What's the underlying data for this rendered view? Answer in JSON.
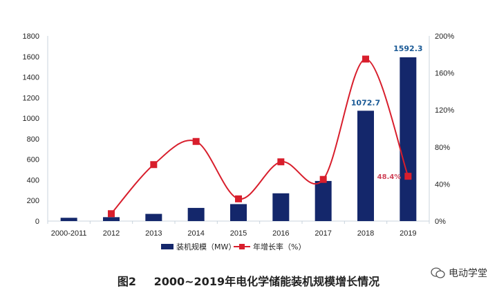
{
  "chart_data": {
    "type": "bar+line",
    "categories": [
      "2000-2011",
      "2012",
      "2013",
      "2014",
      "2015",
      "2016",
      "2017",
      "2018",
      "2019"
    ],
    "series": [
      {
        "name": "装机规模（MW）",
        "type": "bar",
        "axis": "left",
        "color": "#14276b",
        "values": [
          32,
          38,
          70,
          128,
          165,
          270,
          390,
          1072.7,
          1592.3
        ]
      },
      {
        "name": "年增长率（%）",
        "type": "line",
        "axis": "right",
        "color": "#d81e2c",
        "values": [
          null,
          8,
          61,
          86,
          24,
          64,
          45,
          175,
          48.4
        ]
      }
    ],
    "data_labels": {
      "bar_2018": "1072.7",
      "bar_2019": "1592.3",
      "line_2019": "48.4%"
    },
    "left_axis": {
      "ylim": [
        0,
        1800
      ],
      "ticks": [
        "0",
        "200",
        "400",
        "600",
        "800",
        "1000",
        "1200",
        "1400",
        "1600",
        "1800"
      ]
    },
    "right_axis": {
      "ylim": [
        0,
        200
      ],
      "ticks": [
        "0%",
        "40%",
        "80%",
        "120%",
        "160%",
        "200%"
      ]
    },
    "grid": false,
    "legend_position": "bottom"
  },
  "caption": {
    "label": "图2",
    "title": "2000~2019年电化学储能装机规模增长情况"
  },
  "watermark": "电动学堂"
}
